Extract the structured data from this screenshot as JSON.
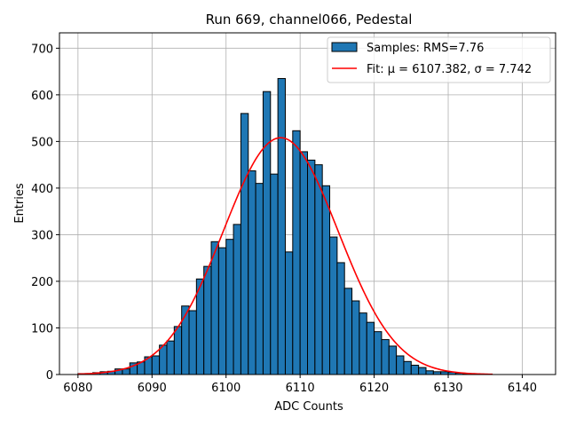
{
  "chart_data": {
    "type": "bar",
    "title": "Run 669, channel066, Pedestal",
    "xlabel": "ADC Counts",
    "ylabel": "Entries",
    "xlim": [
      6077.5,
      6144.5
    ],
    "ylim": [
      0,
      733
    ],
    "xticks": [
      6080,
      6090,
      6100,
      6110,
      6120,
      6130,
      6140
    ],
    "yticks": [
      0,
      100,
      200,
      300,
      400,
      500,
      600,
      700
    ],
    "grid": true,
    "legend_position": "top-right",
    "colors": {
      "bar_fill": "#1f77b4",
      "bar_edge": "#000000",
      "fit_line": "#ff0000",
      "grid": "#b0b0b0"
    },
    "histogram": {
      "name": "Samples: RMS=7.76",
      "bin_width": 1,
      "bin_starts": [
        6080,
        6081,
        6082,
        6083,
        6084,
        6085,
        6086,
        6087,
        6088,
        6089,
        6090,
        6091,
        6092,
        6093,
        6094,
        6095,
        6096,
        6097,
        6098,
        6099,
        6100,
        6101,
        6102,
        6103,
        6104,
        6105,
        6106,
        6107,
        6108,
        6109,
        6110,
        6111,
        6112,
        6113,
        6114,
        6115,
        6116,
        6117,
        6118,
        6119,
        6120,
        6121,
        6122,
        6123,
        6124,
        6125,
        6126,
        6127,
        6128,
        6129,
        6130,
        6131,
        6132,
        6133,
        6134,
        6135
      ],
      "counts": [
        2,
        2,
        4,
        6,
        7,
        12,
        12,
        25,
        27,
        38,
        40,
        63,
        72,
        103,
        147,
        137,
        205,
        232,
        285,
        272,
        290,
        322,
        560,
        437,
        410,
        607,
        430,
        635,
        263,
        523,
        478,
        460,
        450,
        405,
        295,
        240,
        185,
        158,
        132,
        112,
        92,
        75,
        61,
        40,
        28,
        20,
        15,
        8,
        6,
        6,
        5,
        3,
        2,
        1,
        1,
        0
      ]
    },
    "fit": {
      "name": "Fit: μ = 6107.382, σ = 7.742",
      "label_prefix": "Fit: ",
      "mu_label": "μ = 6107.382",
      "sigma_label": "σ = 7.742",
      "mu": 6107.382,
      "sigma": 7.742,
      "amplitude": 508,
      "x_range": [
        6080,
        6136
      ]
    }
  }
}
